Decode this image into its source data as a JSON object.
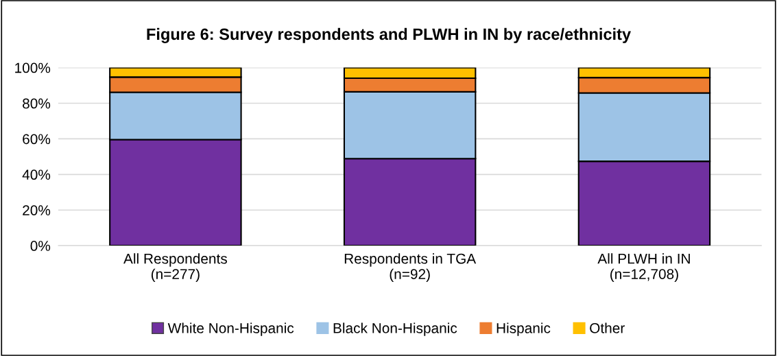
{
  "chart_data": {
    "type": "bar",
    "title": "Figure 6: Survey respondents and PLWH in IN by race/ethnicity",
    "categories": [
      "All Respondents\n(n=277)",
      "Respondents in TGA\n(n=92)",
      "All PLWH in IN\n(n=12,708)"
    ],
    "stacked": true,
    "series": [
      {
        "name": "White Non-Hispanic",
        "color": "#7030a0",
        "values": [
          59.6,
          48.9,
          47.4
        ]
      },
      {
        "name": "Black Non-Hispanic",
        "color": "#9dc3e6",
        "values": [
          26.6,
          37.5,
          38.4
        ]
      },
      {
        "name": "Hispanic",
        "color": "#ed7d31",
        "values": [
          8.5,
          7.7,
          8.6
        ]
      },
      {
        "name": "Other",
        "color": "#ffc000",
        "values": [
          5.3,
          5.9,
          5.6
        ]
      }
    ],
    "ylim": [
      0,
      100
    ],
    "yticks": [
      {
        "value": 0,
        "label": "0%"
      },
      {
        "value": 20,
        "label": "20%"
      },
      {
        "value": 40,
        "label": "40%"
      },
      {
        "value": 60,
        "label": "60%"
      },
      {
        "value": 80,
        "label": "80%"
      },
      {
        "value": 100,
        "label": "100%"
      }
    ],
    "grid": "y",
    "legend": "bottom"
  }
}
